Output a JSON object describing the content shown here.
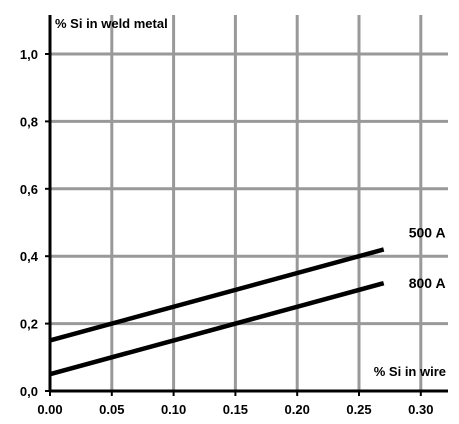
{
  "chart_data": {
    "type": "line",
    "title": "",
    "xlabel": "% Si in wire",
    "ylabel": "% Si in weld metal",
    "xlim": [
      0.0,
      0.3
    ],
    "ylim": [
      0.0,
      1.0
    ],
    "x_ticks": [
      "0.00",
      "0.05",
      "0.10",
      "0.15",
      "0.20",
      "0.25",
      "0.30"
    ],
    "y_ticks": [
      "0,0",
      "0,2",
      "0,4",
      "0,6",
      "0,8",
      "1,0"
    ],
    "grid": true,
    "series": [
      {
        "name": "500 A",
        "x": [
          0.0,
          0.27
        ],
        "y": [
          0.15,
          0.42
        ]
      },
      {
        "name": "800 A",
        "x": [
          0.0,
          0.27
        ],
        "y": [
          0.05,
          0.32
        ]
      }
    ],
    "colors": {
      "grid": "#999999",
      "axis": "#000000",
      "line": "#000000"
    }
  }
}
